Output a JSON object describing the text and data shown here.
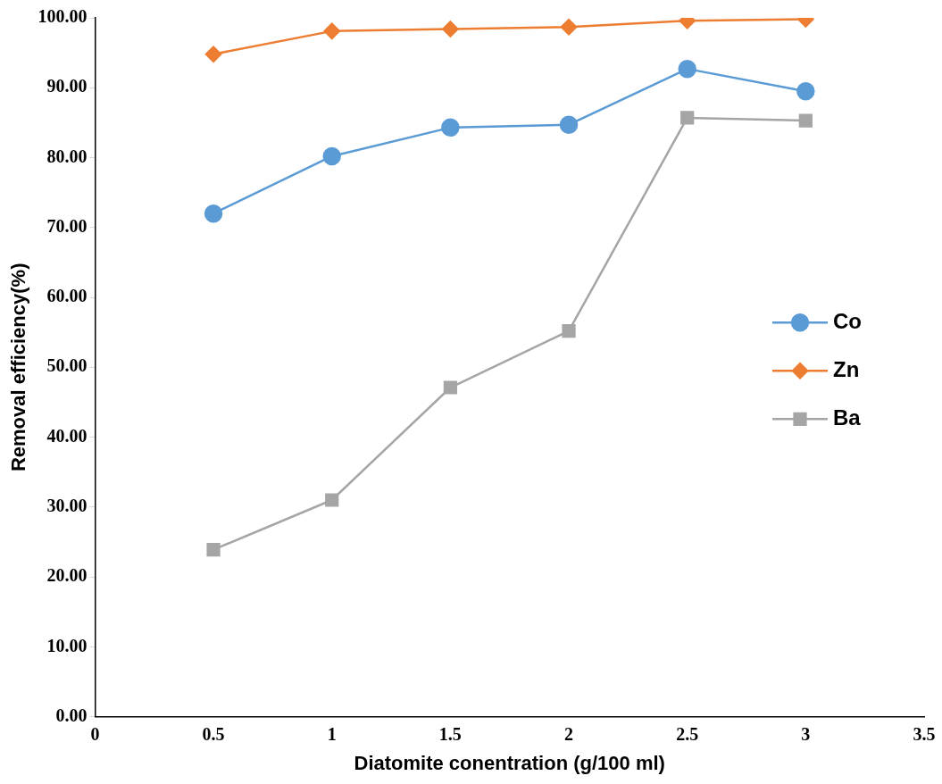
{
  "chart_data": {
    "type": "line",
    "xlabel": "Diatomite conentration (g/100 ml)",
    "ylabel": "Removal efficiency(%)",
    "x": [
      0.5,
      1,
      1.5,
      2,
      2.5,
      3
    ],
    "xlim": [
      0,
      3.5
    ],
    "xticks": [
      0,
      0.5,
      1,
      1.5,
      2,
      2.5,
      3,
      3.5
    ],
    "ylim": [
      0,
      100
    ],
    "yticks": [
      {
        "value": 0,
        "label": "0.00"
      },
      {
        "value": 10,
        "label": "10.00"
      },
      {
        "value": 20,
        "label": "20.00"
      },
      {
        "value": 30,
        "label": "30.00"
      },
      {
        "value": 40,
        "label": "40.00"
      },
      {
        "value": 50,
        "label": "50.00"
      },
      {
        "value": 60,
        "label": "60.00"
      },
      {
        "value": 70,
        "label": "70.00"
      },
      {
        "value": 80,
        "label": "80.00"
      },
      {
        "value": 90,
        "label": "90.00"
      },
      {
        "value": 100,
        "label": "100.00"
      }
    ],
    "grid": false,
    "legend": "right",
    "line_style": "solid",
    "series": [
      {
        "name": "Co",
        "color": "#5b9bd5",
        "marker": "circle",
        "values": [
          72.0,
          80.2,
          84.3,
          84.7,
          92.7,
          89.5
        ]
      },
      {
        "name": "Zn",
        "color": "#ed7d31",
        "marker": "diamond",
        "values": [
          94.8,
          98.1,
          98.4,
          98.7,
          99.6,
          99.8
        ]
      },
      {
        "name": "Ba",
        "color": "#a5a5a5",
        "marker": "square",
        "values": [
          23.9,
          31.0,
          47.1,
          55.2,
          85.7,
          85.3
        ]
      }
    ]
  }
}
